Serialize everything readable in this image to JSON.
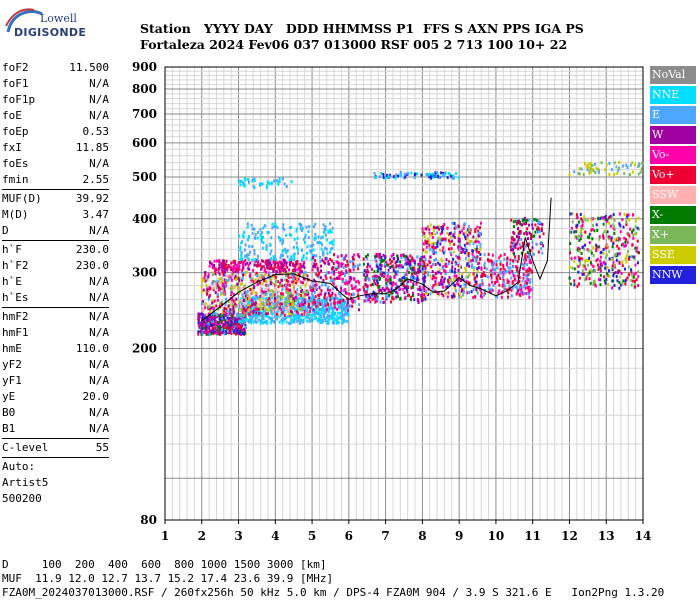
{
  "logo": {
    "line1": "Lowell",
    "line2": "DIGISONDE"
  },
  "header": {
    "labels": "Station   YYYY DAY   DDD HHMMSS P1  FFS S AXN PPS IGA PS",
    "values": "Fortaleza 2024 Fev06 037 013000 RSF 005 2 713 100 10+ 22"
  },
  "params_groups": [
    [
      {
        "name": "foF2",
        "value": "11.500"
      },
      {
        "name": "foF1",
        "value": "N/A"
      },
      {
        "name": "foF1p",
        "value": "N/A"
      },
      {
        "name": "foE",
        "value": "N/A"
      },
      {
        "name": "foEp",
        "value": "0.53"
      },
      {
        "name": "fxI",
        "value": "11.85"
      },
      {
        "name": "foEs",
        "value": "N/A"
      },
      {
        "name": "fmin",
        "value": "2.55"
      }
    ],
    [
      {
        "name": "MUF(D)",
        "value": "39.92"
      },
      {
        "name": "M(D)",
        "value": "3.47"
      },
      {
        "name": "D",
        "value": "N/A"
      }
    ],
    [
      {
        "name": "h`F",
        "value": "230.0"
      },
      {
        "name": "h`F2",
        "value": "230.0"
      },
      {
        "name": "h`E",
        "value": "N/A"
      },
      {
        "name": "h`Es",
        "value": "N/A"
      }
    ],
    [
      {
        "name": "hmF2",
        "value": "N/A"
      },
      {
        "name": "hmF1",
        "value": "N/A"
      },
      {
        "name": "hmE",
        "value": "110.0"
      },
      {
        "name": "yF2",
        "value": "N/A"
      },
      {
        "name": "yF1",
        "value": "N/A"
      },
      {
        "name": "yE",
        "value": "20.0"
      },
      {
        "name": "B0",
        "value": "N/A"
      },
      {
        "name": "B1",
        "value": "N/A"
      }
    ],
    [
      {
        "name": "C-level",
        "value": "55"
      }
    ]
  ],
  "autoscaling": {
    "line1": "Auto:",
    "line2": "Artist5",
    "line3": "500200"
  },
  "legend": [
    {
      "label": "NoVal",
      "color": "#8c8c8c"
    },
    {
      "label": "NNE",
      "color": "#00ddff"
    },
    {
      "label": "E",
      "color": "#4da6ff"
    },
    {
      "label": "W",
      "color": "#a000a0"
    },
    {
      "label": "Vo-",
      "color": "#ff00aa"
    },
    {
      "label": "Vo+",
      "color": "#ee0033"
    },
    {
      "label": "SSW",
      "color": "#ffb0b0"
    },
    {
      "label": "X-",
      "color": "#007a00"
    },
    {
      "label": "X+",
      "color": "#7ab85a"
    },
    {
      "label": "SSE",
      "color": "#cccc00"
    },
    {
      "label": "NNW",
      "color": "#2020dd"
    }
  ],
  "footer": {
    "line1": "D     100  200  400  600  800 1000 1500 3000 [km]",
    "line2": "MUF  11.9 12.0 12.7 13.7 15.2 17.4 23.6 39.9 [MHz]",
    "line3": "FZA0M_2024037013000.RSF / 260fx256h 50 kHz 5.0 km / DPS-4 FZA0M 904 / 3.9 S 321.6 E   Ion2Png 1.3.20"
  },
  "chart_data": {
    "type": "scatter",
    "x_ticks": [
      1,
      2,
      3,
      4,
      5,
      6,
      7,
      8,
      9,
      10,
      11,
      12,
      13,
      14
    ],
    "y_ticks": [
      80,
      200,
      300,
      400,
      500,
      600,
      700,
      800,
      900
    ],
    "xlim": [
      1,
      14
    ],
    "ylim": [
      80,
      900
    ],
    "y_scale": "log",
    "grid": true,
    "legend_position": "right",
    "clusters": [
      {
        "x": [
          1.9,
          3.2
        ],
        "y": [
          215,
          240
        ],
        "colors": [
          "#ee0033",
          "#ff00aa",
          "#2020dd",
          "#a000a0",
          "#007a00",
          "#4da6ff"
        ],
        "n": 520
      },
      {
        "x": [
          3.0,
          6.0
        ],
        "y": [
          228,
          262
        ],
        "colors": [
          "#4da6ff",
          "#00ddff"
        ],
        "n": 600
      },
      {
        "x": [
          2.0,
          5.0
        ],
        "y": [
          238,
          300
        ],
        "colors": [
          "#ee0033",
          "#ff00aa",
          "#a000a0",
          "#4da6ff",
          "#cccc00",
          "#ffb0b0",
          "#7ab85a"
        ],
        "n": 700
      },
      {
        "x": [
          2.2,
          4.8
        ],
        "y": [
          300,
          320
        ],
        "colors": [
          "#a000a0",
          "#ff00aa",
          "#ee0033"
        ],
        "n": 220
      },
      {
        "x": [
          3.0,
          5.6
        ],
        "y": [
          320,
          390
        ],
        "colors": [
          "#4da6ff",
          "#00ddff"
        ],
        "n": 200
      },
      {
        "x": [
          5.0,
          6.3
        ],
        "y": [
          245,
          330
        ],
        "colors": [
          "#ee0033",
          "#ff00aa",
          "#4da6ff",
          "#a000a0"
        ],
        "n": 250
      },
      {
        "x": [
          6.4,
          8.1
        ],
        "y": [
          255,
          330
        ],
        "colors": [
          "#ee0033",
          "#ff00aa",
          "#2020dd",
          "#007a00",
          "#4da6ff",
          "#a000a0"
        ],
        "n": 380
      },
      {
        "x": [
          8.0,
          9.6
        ],
        "y": [
          262,
          390
        ],
        "colors": [
          "#ee0033",
          "#ff00aa",
          "#a000a0",
          "#cccc00",
          "#4da6ff",
          "#2020dd"
        ],
        "n": 420
      },
      {
        "x": [
          9.6,
          11.0
        ],
        "y": [
          262,
          330
        ],
        "colors": [
          "#ee0033",
          "#ff00aa",
          "#4da6ff"
        ],
        "n": 240
      },
      {
        "x": [
          10.4,
          11.3
        ],
        "y": [
          330,
          400
        ],
        "colors": [
          "#007a00",
          "#4da6ff",
          "#ee0033",
          "#a000a0"
        ],
        "n": 120
      },
      {
        "x": [
          12.0,
          13.9
        ],
        "y": [
          275,
          410
        ],
        "colors": [
          "#007a00",
          "#7ab85a",
          "#ff00aa",
          "#ee0033",
          "#2020dd",
          "#cccc00"
        ],
        "n": 360
      },
      {
        "x": [
          3.0,
          4.5
        ],
        "y": [
          470,
          495
        ],
        "colors": [
          "#4da6ff",
          "#00ddff"
        ],
        "n": 40
      },
      {
        "x": [
          6.7,
          9.0
        ],
        "y": [
          495,
          510
        ],
        "colors": [
          "#2020dd",
          "#4da6ff",
          "#00ddff"
        ],
        "n": 80
      },
      {
        "x": [
          12.0,
          14.0
        ],
        "y": [
          505,
          540
        ],
        "colors": [
          "#cccc00",
          "#7ab85a",
          "#4da6ff"
        ],
        "n": 60
      }
    ],
    "trace": {
      "x": [
        2.0,
        2.5,
        3.0,
        3.5,
        4.0,
        4.5,
        5.0,
        5.5,
        5.8,
        6.0,
        6.3,
        6.6,
        7.0,
        7.3,
        7.6,
        8.0,
        8.3,
        8.6,
        9.0,
        9.3,
        9.6,
        10.0,
        10.3,
        10.6,
        10.8,
        11.0,
        11.2,
        11.4,
        11.5
      ],
      "y": [
        232,
        250,
        270,
        285,
        297,
        298,
        287,
        283,
        268,
        260,
        265,
        268,
        268,
        275,
        290,
        282,
        270,
        272,
        292,
        280,
        275,
        265,
        272,
        285,
        362,
        320,
        290,
        320,
        448
      ]
    }
  }
}
